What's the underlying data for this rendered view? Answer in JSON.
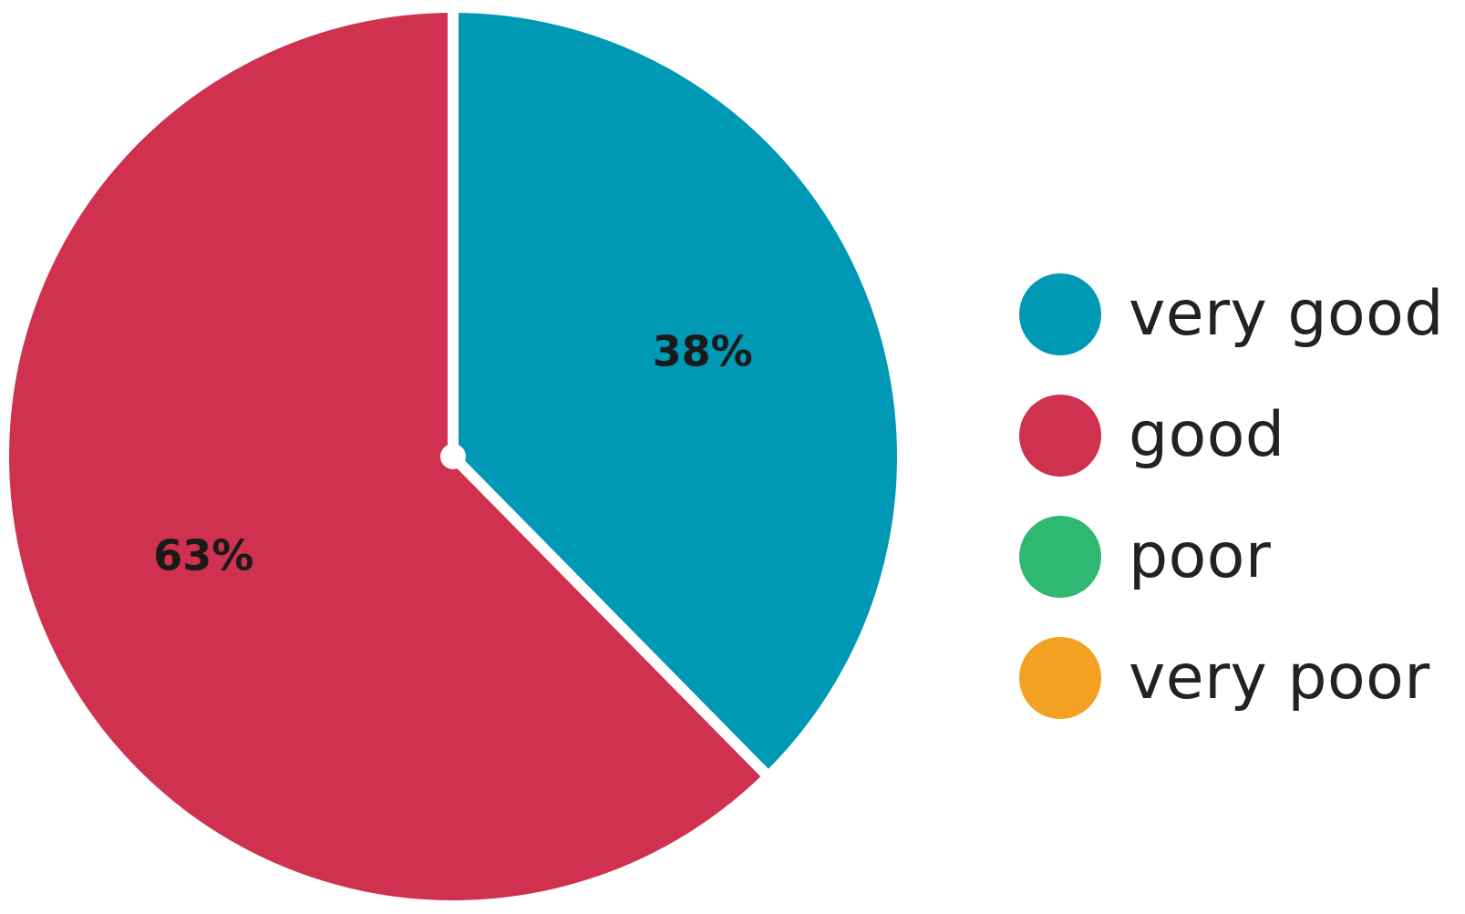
{
  "chart_data": {
    "type": "pie",
    "slices": [
      {
        "label": "very good",
        "value": 38,
        "display": "38%",
        "color": "#0099b5"
      },
      {
        "label": "good",
        "value": 63,
        "display": "63%",
        "color": "#d0314f"
      },
      {
        "label": "poor",
        "value": 0,
        "display": "",
        "color": "#2eb872"
      },
      {
        "label": "very poor",
        "value": 0,
        "display": "",
        "color": "#f2a122"
      }
    ],
    "legend_position": "right",
    "start_angle": "top, clockwise"
  }
}
